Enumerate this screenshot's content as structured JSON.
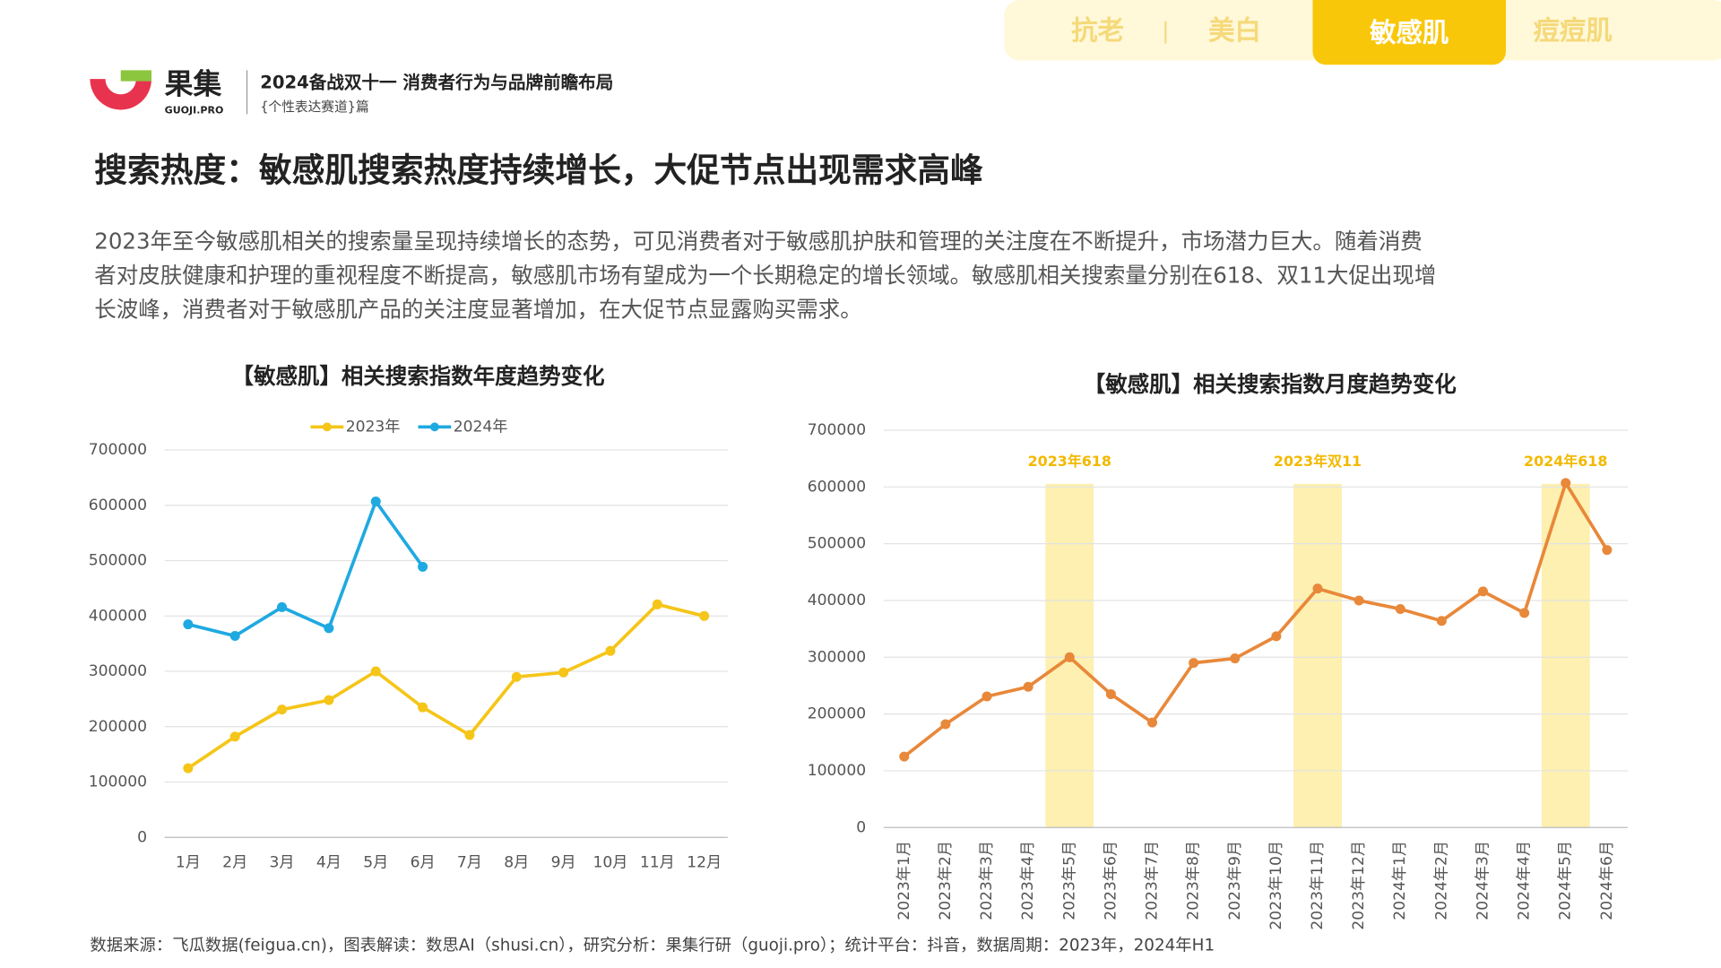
{
  "header": {
    "brand": "果集",
    "brand_sub": "GUOJI.PRO",
    "report_title": "2024备战双十一 消费者行为与品牌前瞻布局",
    "report_sub": "{个性表达赛道}篇"
  },
  "tabs": {
    "items": [
      "抗老",
      "美白",
      "敏感肌",
      "痘痘肌"
    ],
    "separator": "|",
    "active": "敏感肌"
  },
  "title": "搜索热度：敏感肌搜索热度持续增长，大促节点出现需求高峰",
  "body": [
    "2023年至今敏感肌相关的搜索量呈现持续增长的态势，可见消费者对于敏感肌护肤和管理的关注度在不断提升，市场潜力巨大。随着消费",
    "者对皮肤健康和护理的重视程度不断提高，敏感肌市场有望成为一个长期稳定的增长领域。敏感肌相关搜索量分别在618、双11大促出现增",
    "长波峰，消费者对于敏感肌产品的关注度显著增加，在大促节点显露购买需求。"
  ],
  "footer": "数据来源：飞瓜数据(feigua.cn)，图表解读：数思AI（shusi.cn），研究分析：果集行研（guoji.pro）；统计平台：抖音，数据周期：2023年，2024年H1",
  "chart_data": [
    {
      "type": "line",
      "title": "【敏感肌】相关搜索指数年度趋势变化",
      "categories": [
        "1月",
        "2月",
        "3月",
        "4月",
        "5月",
        "6月",
        "7月",
        "8月",
        "9月",
        "10月",
        "11月",
        "12月"
      ],
      "series": [
        {
          "name": "2023年",
          "color": "#f5c518",
          "values": [
            125000,
            182000,
            231000,
            248000,
            300000,
            235000,
            185000,
            290000,
            298000,
            337000,
            421000,
            400000
          ]
        },
        {
          "name": "2024年",
          "color": "#1fa9e1",
          "values": [
            385000,
            364000,
            416000,
            378000,
            607000,
            489000,
            null,
            null,
            null,
            null,
            null,
            null
          ]
        }
      ],
      "ylim": [
        0,
        700000
      ],
      "yticks": [
        0,
        100000,
        200000,
        300000,
        400000,
        500000,
        600000,
        700000
      ],
      "grid": true,
      "legend": "top"
    },
    {
      "type": "line",
      "title": "【敏感肌】相关搜索指数月度趋势变化",
      "categories": [
        "2023年1月",
        "2023年2月",
        "2023年3月",
        "2023年4月",
        "2023年5月",
        "2023年6月",
        "2023年7月",
        "2023年8月",
        "2023年9月",
        "2023年10月",
        "2023年11月",
        "2023年12月",
        "2024年1月",
        "2024年2月",
        "2024年3月",
        "2024年4月",
        "2024年5月",
        "2024年6月"
      ],
      "series": [
        {
          "name": null,
          "color": "#e8883a",
          "values": [
            125000,
            182000,
            231000,
            248000,
            300000,
            235000,
            185000,
            290000,
            298000,
            337000,
            421000,
            400000,
            385000,
            364000,
            416000,
            378000,
            607000,
            489000
          ]
        }
      ],
      "highlights": [
        {
          "label": "2023年618",
          "category": "2023年5月"
        },
        {
          "label": "2023年双11",
          "category": "2023年11月"
        },
        {
          "label": "2024年618",
          "category": "2024年5月"
        }
      ],
      "highlight_color": "#fdf0b0",
      "label_color": "#f2b900",
      "ylim": [
        0,
        700000
      ],
      "yticks": [
        0,
        100000,
        200000,
        300000,
        400000,
        500000,
        600000,
        700000
      ],
      "grid": true
    }
  ]
}
